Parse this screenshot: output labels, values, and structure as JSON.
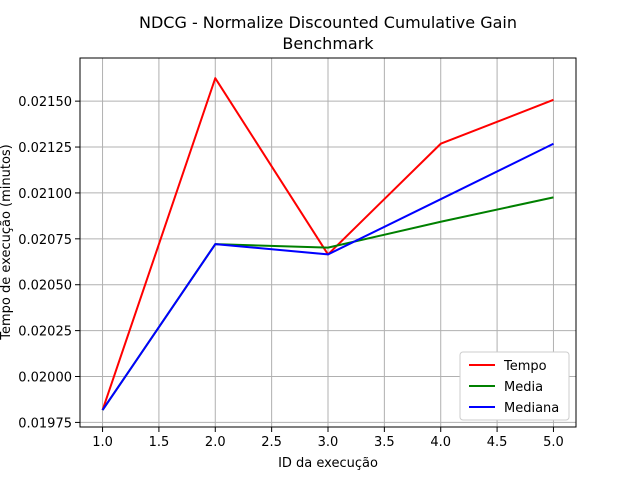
{
  "chart_data": {
    "type": "line",
    "title_lines": [
      "NDCG - Normalize Discounted Cumulative Gain",
      "Benchmark"
    ],
    "xlabel": "ID da execução",
    "ylabel": "Tempo de execução (minutos)",
    "x": [
      1.0,
      2.0,
      3.0,
      4.0,
      5.0
    ],
    "xlim": [
      0.8,
      5.2
    ],
    "ylim": [
      0.019725,
      0.021735
    ],
    "xticks": [
      1.0,
      1.5,
      2.0,
      2.5,
      3.0,
      3.5,
      4.0,
      4.5,
      5.0
    ],
    "xtick_labels": [
      "1.0",
      "1.5",
      "2.0",
      "2.5",
      "3.0",
      "3.5",
      "4.0",
      "4.5",
      "5.0"
    ],
    "yticks": [
      0.01975,
      0.02,
      0.02025,
      0.0205,
      0.02075,
      0.021,
      0.02125,
      0.0215
    ],
    "ytick_labels": [
      "0.01975",
      "0.02000",
      "0.02025",
      "0.02050",
      "0.02075",
      "0.02100",
      "0.02125",
      "0.02150"
    ],
    "grid": true,
    "legend_position": "bottom-right",
    "series": [
      {
        "name": "Tempo",
        "color": "#ff0000",
        "values": [
          0.019817,
          0.021625,
          0.020665,
          0.021268,
          0.021507
        ]
      },
      {
        "name": "Media",
        "color": "#008000",
        "values": [
          0.019817,
          0.020721,
          0.020702,
          0.020843,
          0.020976
        ]
      },
      {
        "name": "Mediana",
        "color": "#0000ff",
        "values": [
          0.019817,
          0.020721,
          0.020665,
          0.020966,
          0.021268
        ]
      }
    ]
  }
}
